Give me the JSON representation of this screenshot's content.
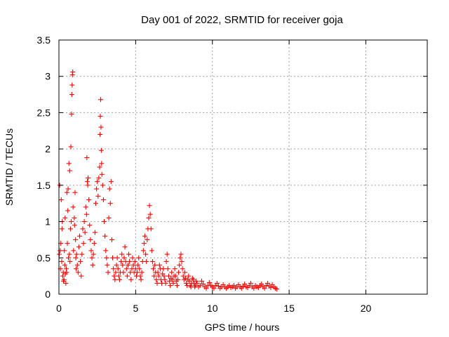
{
  "chart_data": {
    "type": "scatter",
    "title": "Day 001 of 2022, SRMTID for receiver goja",
    "xlabel": "GPS time / hours",
    "ylabel": "SRMTID / TECUs",
    "xlim": [
      0,
      24
    ],
    "ylim": [
      0,
      3.5
    ],
    "grid": true,
    "marker": "+",
    "series_color": "#ff0000",
    "x_ticks": [
      0,
      5,
      10,
      15,
      20
    ],
    "x_tick_labels": [
      "0",
      "5",
      "10",
      "15",
      "20"
    ],
    "y_ticks": [
      0,
      0.5,
      1,
      1.5,
      2,
      2.5,
      3,
      3.5
    ],
    "y_tick_labels": [
      "0",
      "0.5",
      "1",
      "1.5",
      "2",
      "2.5",
      "3",
      "3.5"
    ],
    "series": [
      {
        "name": "SRMTID",
        "points": [
          [
            0.02,
            0.55
          ],
          [
            0.05,
            1.5
          ],
          [
            0.08,
            0.6
          ],
          [
            0.1,
            0.35
          ],
          [
            0.12,
            0.7
          ],
          [
            0.15,
            1.3
          ],
          [
            0.18,
            0.45
          ],
          [
            0.2,
            0.9
          ],
          [
            0.22,
            1.0
          ],
          [
            0.25,
            0.25
          ],
          [
            0.28,
            0.3
          ],
          [
            0.3,
            0.18
          ],
          [
            0.33,
            0.2
          ],
          [
            0.35,
            0.6
          ],
          [
            0.38,
            0.4
          ],
          [
            0.4,
            1.05
          ],
          [
            0.42,
            0.28
          ],
          [
            0.45,
            0.15
          ],
          [
            0.48,
            0.35
          ],
          [
            0.5,
            0.3
          ],
          [
            0.52,
            1.4
          ],
          [
            0.55,
            0.7
          ],
          [
            0.58,
            1.15
          ],
          [
            0.6,
            1.45
          ],
          [
            0.62,
            0.5
          ],
          [
            0.65,
            1.8
          ],
          [
            0.68,
            0.55
          ],
          [
            0.7,
            1.7
          ],
          [
            0.72,
            0.45
          ],
          [
            0.75,
            0.9
          ],
          [
            0.78,
            2.03
          ],
          [
            0.8,
            1.0
          ],
          [
            0.82,
            2.48
          ],
          [
            0.84,
            2.75
          ],
          [
            0.86,
            2.88
          ],
          [
            0.88,
            3.02
          ],
          [
            0.9,
            3.06
          ],
          [
            0.92,
            1.2
          ],
          [
            0.95,
            0.6
          ],
          [
            1.0,
            1.05
          ],
          [
            1.02,
            0.95
          ],
          [
            1.05,
            1.4
          ],
          [
            1.08,
            0.75
          ],
          [
            1.1,
            0.5
          ],
          [
            1.12,
            0.35
          ],
          [
            1.15,
            0.55
          ],
          [
            1.2,
            0.4
          ],
          [
            1.25,
            0.3
          ],
          [
            1.3,
            0.65
          ],
          [
            1.35,
            0.8
          ],
          [
            1.4,
            0.45
          ],
          [
            1.45,
            0.25
          ],
          [
            1.5,
            0.55
          ],
          [
            1.55,
            0.9
          ],
          [
            1.6,
            0.7
          ],
          [
            1.65,
            1.0
          ],
          [
            1.7,
            0.85
          ],
          [
            1.75,
            1.2
          ],
          [
            1.8,
            1.1
          ],
          [
            1.82,
            1.88
          ],
          [
            1.85,
            1.55
          ],
          [
            1.88,
            1.5
          ],
          [
            1.9,
            1.6
          ],
          [
            1.95,
            1.3
          ],
          [
            2.0,
            0.95
          ],
          [
            2.05,
            0.75
          ],
          [
            2.1,
            0.6
          ],
          [
            2.15,
            0.5
          ],
          [
            2.2,
            0.4
          ],
          [
            2.25,
            0.55
          ],
          [
            2.3,
            0.7
          ],
          [
            2.35,
            0.85
          ],
          [
            2.4,
            1.25
          ],
          [
            2.45,
            1.45
          ],
          [
            2.5,
            1.55
          ],
          [
            2.55,
            1.35
          ],
          [
            2.6,
            1.6
          ],
          [
            2.65,
            1.75
          ],
          [
            2.68,
            2.2
          ],
          [
            2.7,
            2.45
          ],
          [
            2.72,
            2.68
          ],
          [
            2.74,
            2.3
          ],
          [
            2.76,
            1.98
          ],
          [
            2.78,
            1.8
          ],
          [
            2.8,
            1.65
          ],
          [
            2.85,
            1.5
          ],
          [
            2.9,
            1.3
          ],
          [
            2.95,
            1.0
          ],
          [
            3.0,
            0.8
          ],
          [
            3.05,
            0.6
          ],
          [
            3.1,
            0.5
          ],
          [
            3.15,
            0.4
          ],
          [
            3.2,
            0.3
          ],
          [
            3.25,
            1.05
          ],
          [
            3.3,
            1.45
          ],
          [
            3.35,
            1.25
          ],
          [
            3.4,
            1.55
          ],
          [
            3.45,
            0.75
          ],
          [
            3.5,
            0.5
          ],
          [
            3.55,
            0.35
          ],
          [
            3.6,
            0.25
          ],
          [
            3.65,
            0.2
          ],
          [
            3.7,
            0.3
          ],
          [
            3.75,
            0.4
          ],
          [
            3.8,
            0.5
          ],
          [
            3.85,
            0.35
          ],
          [
            3.9,
            0.25
          ],
          [
            3.95,
            0.2
          ],
          [
            4.0,
            0.3
          ],
          [
            4.05,
            0.45
          ],
          [
            4.1,
            0.55
          ],
          [
            4.15,
            0.4
          ],
          [
            4.2,
            0.3
          ],
          [
            4.25,
            0.5
          ],
          [
            4.3,
            0.65
          ],
          [
            4.35,
            0.45
          ],
          [
            4.4,
            0.35
          ],
          [
            4.45,
            0.25
          ],
          [
            4.5,
            0.4
          ],
          [
            4.55,
            0.55
          ],
          [
            4.6,
            0.45
          ],
          [
            4.65,
            0.3
          ],
          [
            4.7,
            0.2
          ],
          [
            4.75,
            0.35
          ],
          [
            4.8,
            0.5
          ],
          [
            4.85,
            0.4
          ],
          [
            4.9,
            0.3
          ],
          [
            4.95,
            0.45
          ],
          [
            5.0,
            0.35
          ],
          [
            5.05,
            0.25
          ],
          [
            5.1,
            0.3
          ],
          [
            5.15,
            0.4
          ],
          [
            5.2,
            0.5
          ],
          [
            5.25,
            0.35
          ],
          [
            5.3,
            0.25
          ],
          [
            5.35,
            0.2
          ],
          [
            5.4,
            0.3
          ],
          [
            5.45,
            0.45
          ],
          [
            5.5,
            0.6
          ],
          [
            5.55,
            0.7
          ],
          [
            5.6,
            0.8
          ],
          [
            5.65,
            0.55
          ],
          [
            5.7,
            0.45
          ],
          [
            5.75,
            0.75
          ],
          [
            5.8,
            0.9
          ],
          [
            5.85,
            1.05
          ],
          [
            5.9,
            1.22
          ],
          [
            5.95,
            1.1
          ],
          [
            6.0,
            0.9
          ],
          [
            6.05,
            0.6
          ],
          [
            6.1,
            0.45
          ],
          [
            6.15,
            0.35
          ],
          [
            6.2,
            0.25
          ],
          [
            6.25,
            0.4
          ],
          [
            6.3,
            0.3
          ],
          [
            6.35,
            0.2
          ],
          [
            6.4,
            0.15
          ],
          [
            6.45,
            0.3
          ],
          [
            6.5,
            0.25
          ],
          [
            6.55,
            0.4
          ],
          [
            6.6,
            0.35
          ],
          [
            6.65,
            0.2
          ],
          [
            6.7,
            0.15
          ],
          [
            6.75,
            0.28
          ],
          [
            6.8,
            0.35
          ],
          [
            6.85,
            0.25
          ],
          [
            6.9,
            0.2
          ],
          [
            6.95,
            0.15
          ],
          [
            7.0,
            0.45
          ],
          [
            7.05,
            0.55
          ],
          [
            7.1,
            0.35
          ],
          [
            7.15,
            0.25
          ],
          [
            7.2,
            0.18
          ],
          [
            7.25,
            0.12
          ],
          [
            7.3,
            0.22
          ],
          [
            7.35,
            0.3
          ],
          [
            7.4,
            0.2
          ],
          [
            7.45,
            0.15
          ],
          [
            7.5,
            0.25
          ],
          [
            7.55,
            0.35
          ],
          [
            7.6,
            0.25
          ],
          [
            7.65,
            0.18
          ],
          [
            7.7,
            0.12
          ],
          [
            7.75,
            0.2
          ],
          [
            7.8,
            0.3
          ],
          [
            7.85,
            0.4
          ],
          [
            7.9,
            0.5
          ],
          [
            7.95,
            0.55
          ],
          [
            8.0,
            0.45
          ],
          [
            8.05,
            0.35
          ],
          [
            8.1,
            0.25
          ],
          [
            8.15,
            0.2
          ],
          [
            8.2,
            0.3
          ],
          [
            8.25,
            0.22
          ],
          [
            8.3,
            0.15
          ],
          [
            8.35,
            0.12
          ],
          [
            8.4,
            0.2
          ],
          [
            8.45,
            0.25
          ],
          [
            8.5,
            0.18
          ],
          [
            8.55,
            0.12
          ],
          [
            8.6,
            0.1
          ],
          [
            8.65,
            0.15
          ],
          [
            8.7,
            0.22
          ],
          [
            8.75,
            0.2
          ],
          [
            8.8,
            0.15
          ],
          [
            8.85,
            0.1
          ],
          [
            8.9,
            0.12
          ],
          [
            8.95,
            0.18
          ],
          [
            9.0,
            0.15
          ],
          [
            9.1,
            0.1
          ],
          [
            9.2,
            0.12
          ],
          [
            9.3,
            0.18
          ],
          [
            9.4,
            0.14
          ],
          [
            9.5,
            0.1
          ],
          [
            9.6,
            0.08
          ],
          [
            9.7,
            0.12
          ],
          [
            9.8,
            0.16
          ],
          [
            9.9,
            0.12
          ],
          [
            10.0,
            0.1
          ],
          [
            10.1,
            0.08
          ],
          [
            10.2,
            0.12
          ],
          [
            10.3,
            0.15
          ],
          [
            10.4,
            0.11
          ],
          [
            10.5,
            0.08
          ],
          [
            10.6,
            0.1
          ],
          [
            10.7,
            0.13
          ],
          [
            10.8,
            0.1
          ],
          [
            10.9,
            0.08
          ],
          [
            11.0,
            0.1
          ],
          [
            11.1,
            0.12
          ],
          [
            11.2,
            0.09
          ],
          [
            11.3,
            0.1
          ],
          [
            11.4,
            0.12
          ],
          [
            11.5,
            0.08
          ],
          [
            11.6,
            0.1
          ],
          [
            11.7,
            0.13
          ],
          [
            11.8,
            0.1
          ],
          [
            11.9,
            0.08
          ],
          [
            12.0,
            0.11
          ],
          [
            12.1,
            0.14
          ],
          [
            12.2,
            0.1
          ],
          [
            12.3,
            0.09
          ],
          [
            12.4,
            0.12
          ],
          [
            12.5,
            0.15
          ],
          [
            12.6,
            0.1
          ],
          [
            12.7,
            0.08
          ],
          [
            12.8,
            0.12
          ],
          [
            12.9,
            0.1
          ],
          [
            13.0,
            0.09
          ],
          [
            13.1,
            0.12
          ],
          [
            13.2,
            0.14
          ],
          [
            13.3,
            0.1
          ],
          [
            13.4,
            0.08
          ],
          [
            13.5,
            0.12
          ],
          [
            13.6,
            0.15
          ],
          [
            13.7,
            0.11
          ],
          [
            13.8,
            0.09
          ],
          [
            13.9,
            0.13
          ],
          [
            14.0,
            0.1
          ],
          [
            14.1,
            0.08
          ],
          [
            14.2,
            0.07
          ]
        ]
      }
    ]
  }
}
